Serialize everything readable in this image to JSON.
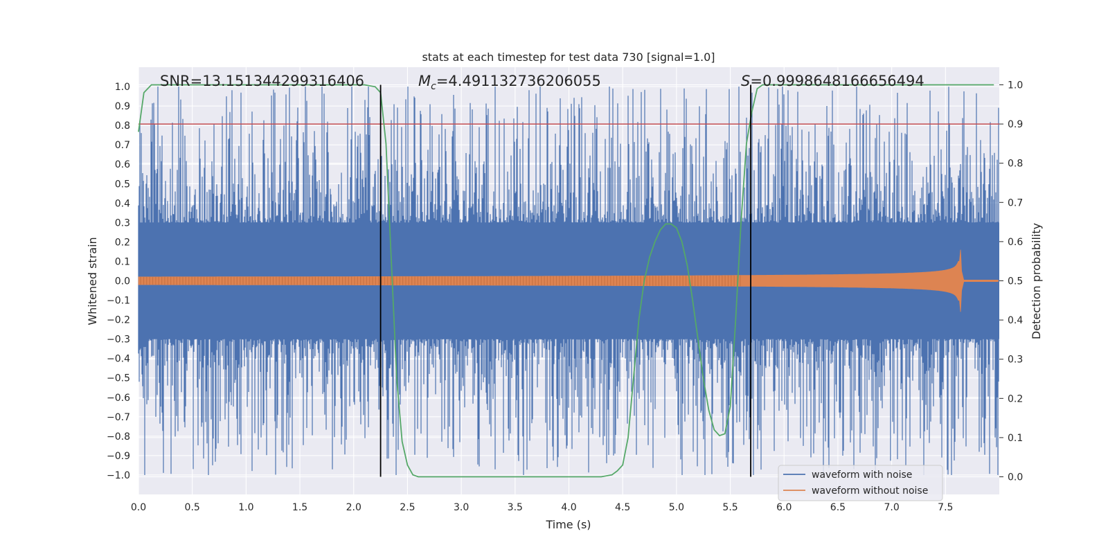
{
  "chart_data": {
    "type": "line",
    "title": "stats at each timestep for test data 730 [signal=1.0]",
    "xlabel": "Time (s)",
    "ylabel": "Whitened strain",
    "y2label": "Detection probability",
    "xlim": [
      0.0,
      8.0
    ],
    "ylim": [
      -1.1,
      1.1
    ],
    "y2lim": [
      -0.045,
      1.045
    ],
    "x_ticks": [
      "0.0",
      "0.5",
      "1.0",
      "1.5",
      "2.0",
      "2.5",
      "3.0",
      "3.5",
      "4.0",
      "4.5",
      "5.0",
      "5.5",
      "6.0",
      "6.5",
      "7.0",
      "7.5"
    ],
    "y_ticks": [
      "1.0",
      "0.9",
      "0.8",
      "0.7",
      "0.6",
      "0.5",
      "0.4",
      "0.3",
      "0.2",
      "0.1",
      "0.0",
      "−0.1",
      "−0.2",
      "−0.3",
      "−0.4",
      "−0.5",
      "−0.6",
      "−0.7",
      "−0.8",
      "−0.9",
      "−1.0"
    ],
    "y2_ticks": [
      "1.0",
      "0.9",
      "0.8",
      "0.7",
      "0.6",
      "0.5",
      "0.4",
      "0.3",
      "0.2",
      "0.1",
      "0.0"
    ],
    "annotations": {
      "snr": "SNR=13.151344299316406",
      "mc_symbol": "M",
      "mc_sub": "c",
      "mc_value": "=4.491132736206055",
      "s_symbol": "S",
      "s_value": "=0.9998648166656494"
    },
    "vlines_x": [
      2.25,
      5.69
    ],
    "threshold_y2": 0.9,
    "detection_probability": {
      "x": [
        0.0,
        0.05,
        0.12,
        0.5,
        1.0,
        1.5,
        2.0,
        2.1,
        2.2,
        2.25,
        2.3,
        2.35,
        2.4,
        2.45,
        2.5,
        2.55,
        2.6,
        3.0,
        3.5,
        4.0,
        4.3,
        4.4,
        4.45,
        4.5,
        4.55,
        4.6,
        4.65,
        4.7,
        4.75,
        4.8,
        4.85,
        4.9,
        4.95,
        5.0,
        5.05,
        5.1,
        5.15,
        5.2,
        5.25,
        5.3,
        5.35,
        5.4,
        5.45,
        5.5,
        5.55,
        5.6,
        5.65,
        5.7,
        5.75,
        5.8,
        6.0,
        6.5,
        7.0,
        7.5,
        7.95
      ],
      "y": [
        0.88,
        0.98,
        1.0,
        1.0,
        1.0,
        1.0,
        1.0,
        1.0,
        0.995,
        0.98,
        0.85,
        0.55,
        0.25,
        0.09,
        0.03,
        0.005,
        0.0,
        0.0,
        0.0,
        0.0,
        0.0,
        0.005,
        0.015,
        0.03,
        0.1,
        0.25,
        0.4,
        0.5,
        0.56,
        0.6,
        0.63,
        0.645,
        0.645,
        0.635,
        0.6,
        0.54,
        0.45,
        0.35,
        0.25,
        0.17,
        0.12,
        0.105,
        0.11,
        0.18,
        0.4,
        0.65,
        0.85,
        0.93,
        0.99,
        1.0,
        1.0,
        1.0,
        1.0,
        1.0,
        1.0
      ]
    },
    "chirp": {
      "t_merger": 7.63,
      "amp_start": 0.02,
      "amp_peak": 0.29
    },
    "noise": {
      "core_level": 0.3,
      "seed": 730
    },
    "series": [
      {
        "name": "waveform with noise",
        "color": "#4c72b0"
      },
      {
        "name": "waveform without noise",
        "color": "#dd8452"
      },
      {
        "color": "#55a868"
      },
      {
        "color": "#c44e52"
      }
    ],
    "legend_position": "bottom-right",
    "grid": true
  }
}
